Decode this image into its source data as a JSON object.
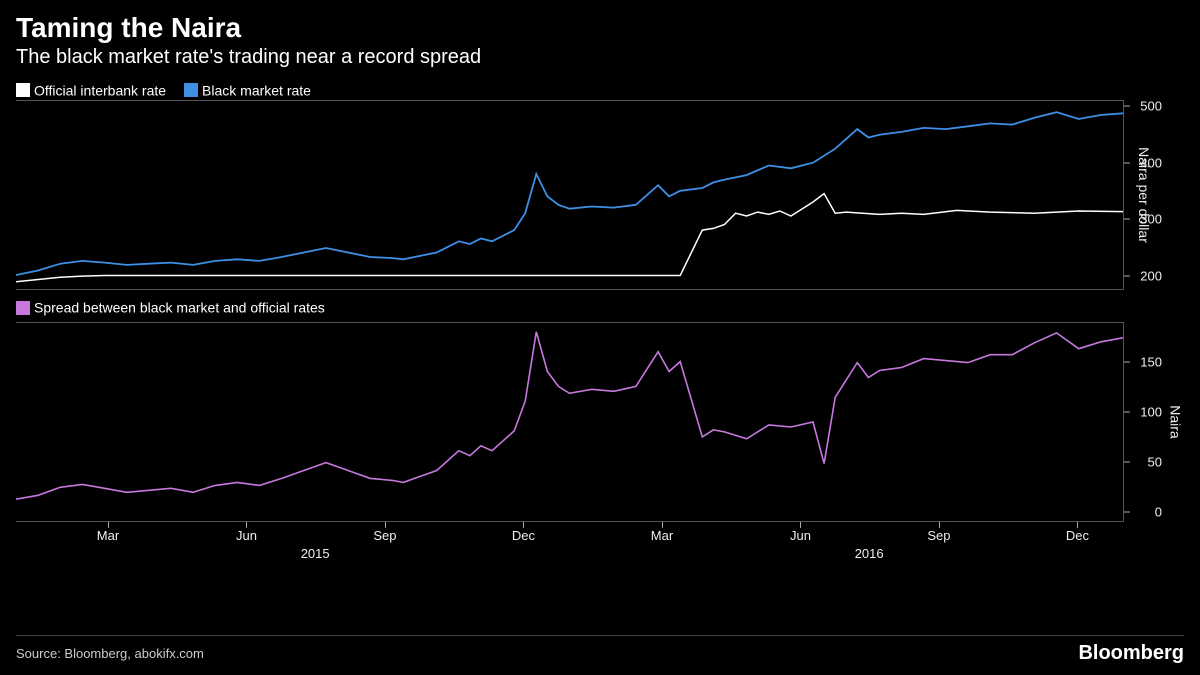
{
  "header": {
    "title": "Taming the Naira",
    "subtitle": "The black market rate's trading near a record spread"
  },
  "top_chart": {
    "type": "line",
    "y_title": "Naira per dollar",
    "ylim": [
      175,
      510
    ],
    "yticks": [
      200,
      300,
      400,
      500
    ],
    "series": [
      {
        "name": "Official interbank rate",
        "color": "#ffffff",
        "stroke_width": 1.5,
        "data": [
          [
            0,
            188
          ],
          [
            2,
            192
          ],
          [
            4,
            196
          ],
          [
            6,
            198
          ],
          [
            8,
            199
          ],
          [
            10,
            199
          ],
          [
            15,
            199
          ],
          [
            20,
            199
          ],
          [
            25,
            199
          ],
          [
            30,
            199
          ],
          [
            35,
            199
          ],
          [
            40,
            199
          ],
          [
            45,
            199
          ],
          [
            50,
            199
          ],
          [
            55,
            199
          ],
          [
            58,
            199
          ],
          [
            60,
            199
          ],
          [
            62,
            280
          ],
          [
            63,
            283
          ],
          [
            64,
            290
          ],
          [
            65,
            310
          ],
          [
            66,
            305
          ],
          [
            67,
            312
          ],
          [
            68,
            308
          ],
          [
            69,
            314
          ],
          [
            70,
            305
          ],
          [
            72,
            330
          ],
          [
            73,
            345
          ],
          [
            74,
            310
          ],
          [
            75,
            312
          ],
          [
            78,
            308
          ],
          [
            80,
            310
          ],
          [
            82,
            308
          ],
          [
            85,
            315
          ],
          [
            88,
            312
          ],
          [
            92,
            310
          ],
          [
            96,
            314
          ],
          [
            100,
            313
          ]
        ]
      },
      {
        "name": "Black market rate",
        "color": "#3e8fe6",
        "stroke_width": 1.8,
        "data": [
          [
            0,
            200
          ],
          [
            2,
            208
          ],
          [
            4,
            220
          ],
          [
            6,
            225
          ],
          [
            8,
            222
          ],
          [
            10,
            218
          ],
          [
            12,
            220
          ],
          [
            14,
            222
          ],
          [
            16,
            218
          ],
          [
            18,
            225
          ],
          [
            20,
            228
          ],
          [
            22,
            225
          ],
          [
            24,
            232
          ],
          [
            26,
            240
          ],
          [
            28,
            248
          ],
          [
            30,
            240
          ],
          [
            32,
            232
          ],
          [
            34,
            230
          ],
          [
            35,
            228
          ],
          [
            36,
            232
          ],
          [
            38,
            240
          ],
          [
            40,
            260
          ],
          [
            41,
            255
          ],
          [
            42,
            265
          ],
          [
            43,
            260
          ],
          [
            44,
            270
          ],
          [
            45,
            280
          ],
          [
            46,
            310
          ],
          [
            47,
            380
          ],
          [
            48,
            340
          ],
          [
            49,
            325
          ],
          [
            50,
            318
          ],
          [
            52,
            322
          ],
          [
            54,
            320
          ],
          [
            56,
            325
          ],
          [
            58,
            360
          ],
          [
            59,
            340
          ],
          [
            60,
            350
          ],
          [
            62,
            355
          ],
          [
            63,
            365
          ],
          [
            64,
            370
          ],
          [
            66,
            378
          ],
          [
            68,
            395
          ],
          [
            70,
            390
          ],
          [
            72,
            400
          ],
          [
            74,
            425
          ],
          [
            76,
            460
          ],
          [
            77,
            445
          ],
          [
            78,
            450
          ],
          [
            80,
            455
          ],
          [
            82,
            462
          ],
          [
            84,
            460
          ],
          [
            86,
            465
          ],
          [
            88,
            470
          ],
          [
            90,
            468
          ],
          [
            92,
            480
          ],
          [
            94,
            490
          ],
          [
            96,
            478
          ],
          [
            98,
            485
          ],
          [
            100,
            488
          ]
        ]
      }
    ],
    "end_marker_color": "#ffffff"
  },
  "bottom_chart": {
    "type": "line",
    "y_title": "Naira",
    "ylim": [
      -10,
      190
    ],
    "yticks": [
      0,
      50,
      100,
      150
    ],
    "series": [
      {
        "name": "Spread between black market and official rates",
        "color": "#c678dd",
        "stroke_width": 1.6,
        "data": [
          [
            0,
            12
          ],
          [
            2,
            16
          ],
          [
            4,
            24
          ],
          [
            6,
            27
          ],
          [
            8,
            23
          ],
          [
            10,
            19
          ],
          [
            12,
            21
          ],
          [
            14,
            23
          ],
          [
            16,
            19
          ],
          [
            18,
            26
          ],
          [
            20,
            29
          ],
          [
            22,
            26
          ],
          [
            24,
            33
          ],
          [
            26,
            41
          ],
          [
            28,
            49
          ],
          [
            30,
            41
          ],
          [
            32,
            33
          ],
          [
            34,
            31
          ],
          [
            35,
            29
          ],
          [
            36,
            33
          ],
          [
            38,
            41
          ],
          [
            40,
            61
          ],
          [
            41,
            56
          ],
          [
            42,
            66
          ],
          [
            43,
            61
          ],
          [
            44,
            71
          ],
          [
            45,
            81
          ],
          [
            46,
            111
          ],
          [
            47,
            181
          ],
          [
            48,
            141
          ],
          [
            49,
            126
          ],
          [
            50,
            119
          ],
          [
            52,
            123
          ],
          [
            54,
            121
          ],
          [
            56,
            126
          ],
          [
            58,
            161
          ],
          [
            59,
            141
          ],
          [
            60,
            151
          ],
          [
            62,
            75
          ],
          [
            63,
            82
          ],
          [
            64,
            80
          ],
          [
            66,
            73
          ],
          [
            68,
            87
          ],
          [
            70,
            85
          ],
          [
            72,
            90
          ],
          [
            73,
            48
          ],
          [
            74,
            115
          ],
          [
            76,
            150
          ],
          [
            77,
            135
          ],
          [
            78,
            142
          ],
          [
            80,
            145
          ],
          [
            82,
            154
          ],
          [
            84,
            152
          ],
          [
            86,
            150
          ],
          [
            88,
            158
          ],
          [
            90,
            158
          ],
          [
            92,
            170
          ],
          [
            94,
            180
          ],
          [
            96,
            164
          ],
          [
            98,
            171
          ],
          [
            100,
            175
          ]
        ]
      }
    ],
    "end_marker_color": "#ffffff"
  },
  "x_axis": {
    "range": [
      0,
      100
    ],
    "ticks": [
      {
        "pos": 8.3,
        "label": "Mar"
      },
      {
        "pos": 20.8,
        "label": "Jun"
      },
      {
        "pos": 33.3,
        "label": "Sep"
      },
      {
        "pos": 45.8,
        "label": "Dec"
      },
      {
        "pos": 58.3,
        "label": "Mar"
      },
      {
        "pos": 70.8,
        "label": "Jun"
      },
      {
        "pos": 83.3,
        "label": "Sep"
      },
      {
        "pos": 95.8,
        "label": "Dec"
      }
    ],
    "year_labels": [
      {
        "pos": 27,
        "label": "2015"
      },
      {
        "pos": 77,
        "label": "2016"
      }
    ]
  },
  "colors": {
    "background": "#000000",
    "text": "#ffffff",
    "axis": "#555555",
    "tick_text": "#eeeeee"
  },
  "footer": {
    "source": "Source: Bloomberg, abokifx.com",
    "brand": "Bloomberg"
  }
}
